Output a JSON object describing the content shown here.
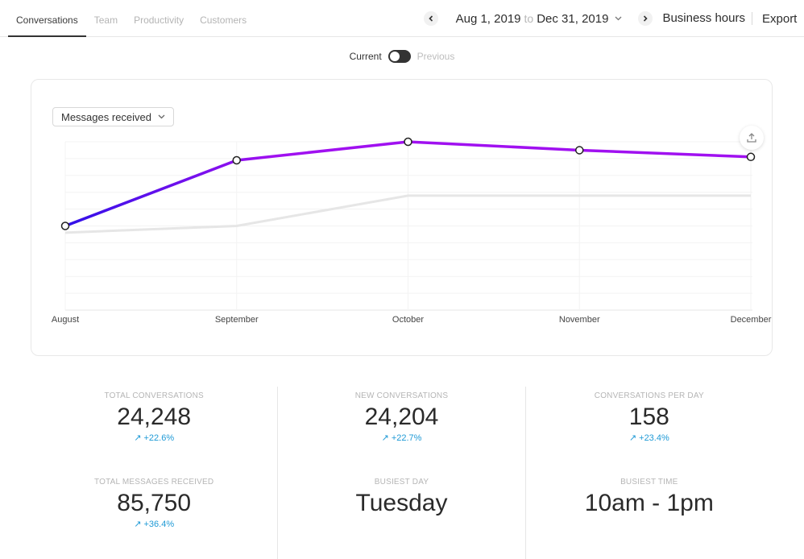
{
  "tabs": [
    {
      "label": "Conversations",
      "active": true
    },
    {
      "label": "Team",
      "active": false
    },
    {
      "label": "Productivity",
      "active": false
    },
    {
      "label": "Customers",
      "active": false
    }
  ],
  "date_range": {
    "start": "Aug 1, 2019",
    "connector": "to",
    "end": "Dec 31, 2019"
  },
  "header_actions": {
    "business_hours": "Business hours",
    "export": "Export"
  },
  "icons": {
    "prev": "chevron-left-icon",
    "next": "chevron-right-icon",
    "dropdown": "chevron-down-icon",
    "export_chart": "upload-icon",
    "trend": "arrow-up-right-icon"
  },
  "toggle": {
    "current_label": "Current",
    "previous_label": "Previous",
    "state": "current"
  },
  "chart_card": {
    "metric_select": "Messages received"
  },
  "colors": {
    "line_start": "#3010e8",
    "line_end": "#a010f0",
    "previous_line": "#e6e6e6",
    "change_positive": "#1f9ad6"
  },
  "chart_data": {
    "type": "line",
    "categories": [
      "August",
      "September",
      "October",
      "November",
      "December"
    ],
    "series": [
      {
        "role": "current",
        "values": [
          100,
          139,
          150,
          145,
          141
        ]
      },
      {
        "role": "previous",
        "values": [
          96,
          100,
          118,
          118,
          118
        ]
      }
    ],
    "ylim": [
      50,
      150
    ],
    "grid": true,
    "y_tick_labels_visible": false
  },
  "stats": [
    [
      {
        "label": "Total Conversations",
        "value": "24,248",
        "change": "+22.6%"
      },
      {
        "label": "Total Messages Received",
        "value": "85,750",
        "change": "+36.4%"
      }
    ],
    [
      {
        "label": "New Conversations",
        "value": "24,204",
        "change": "+22.7%"
      },
      {
        "label": "Busiest Day",
        "value": "Tuesday",
        "change": ""
      }
    ],
    [
      {
        "label": "Conversations Per Day",
        "value": "158",
        "change": "+23.4%"
      },
      {
        "label": "Busiest Time",
        "value": "10am - 1pm",
        "change": ""
      }
    ]
  ]
}
